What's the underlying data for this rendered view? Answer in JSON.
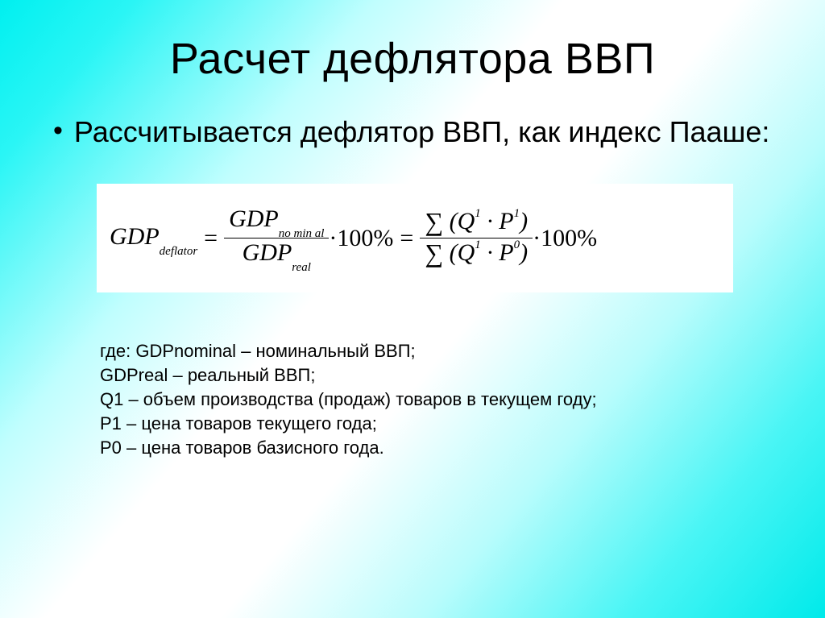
{
  "title": "Расчет дефлятора ВВП",
  "intro": {
    "bullet_glyph": "•",
    "text": "Рассчитывается дефлятор ВВП, как индекс Пааше:"
  },
  "formula": {
    "lhs": {
      "base": "GDP",
      "sub": "deflator"
    },
    "ratio1": {
      "num": {
        "base": "GDP",
        "sub": "no min al"
      },
      "den": {
        "base": "GDP",
        "sub": "real"
      }
    },
    "times_100": "·100%",
    "ratio2": {
      "num": {
        "sigma": "∑",
        "lparen": "(",
        "q": "Q",
        "q_sup": "1",
        "dot": " · ",
        "p": "P",
        "p_sup": "1",
        "rparen": ")"
      },
      "den": {
        "sigma": "∑",
        "lparen": "(",
        "q": "Q",
        "q_sup": "1",
        "dot": " · ",
        "p": "P",
        "p_sup": "0",
        "rparen": ")"
      }
    },
    "eq_sign": "=",
    "background_color": "#ffffff"
  },
  "legend": {
    "lines": [
      "где: GDPnominal – номинальный ВВП;",
      "GDPreal – реальный ВВП;",
      "Q1 – объем производства (продаж) товаров в текущем году;",
      "P1 – цена товаров текущего года;",
      "P0 – цена товаров базисного года."
    ]
  }
}
